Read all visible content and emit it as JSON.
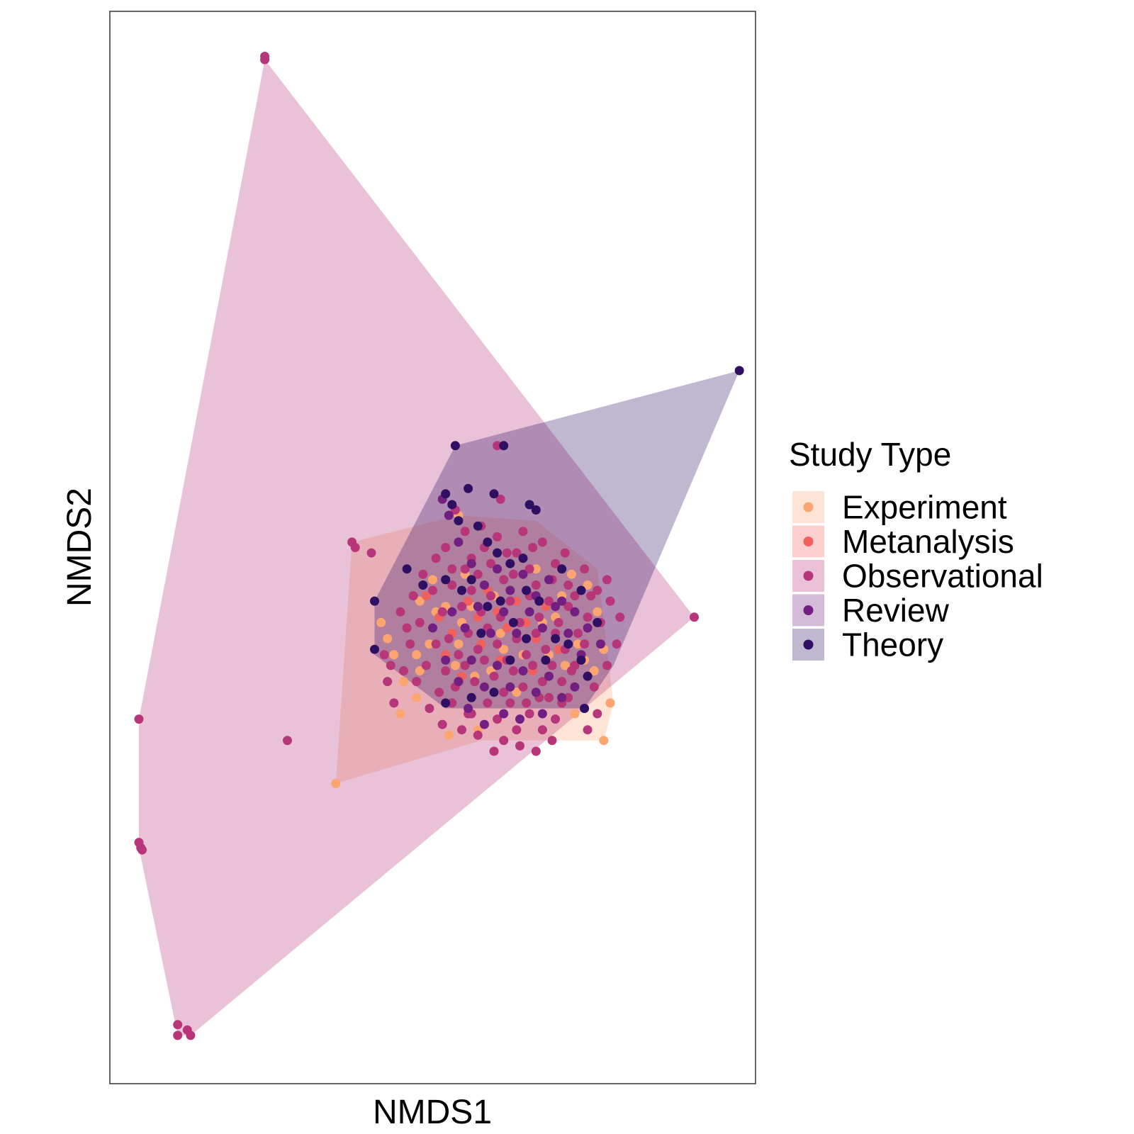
{
  "chart_data": {
    "type": "scatter",
    "title": "",
    "xlabel": "NMDS1",
    "ylabel": "NMDS2",
    "xlim": [
      0,
      100
    ],
    "ylim": [
      0,
      100
    ],
    "grid": false,
    "legend": {
      "title": "Study Type",
      "placement": "right"
    },
    "series": [
      {
        "name": "Experiment",
        "color": "#FCA570",
        "hull": [
          [
            35.0,
            28.0
          ],
          [
            37.5,
            50.5
          ],
          [
            54.0,
            53.0
          ],
          [
            66.0,
            52.5
          ],
          [
            75.5,
            48.0
          ],
          [
            78.0,
            35.5
          ],
          [
            76.5,
            32.0
          ],
          [
            57.5,
            32.0
          ]
        ],
        "points": [
          [
            37.5,
            50.5
          ],
          [
            35.0,
            28.0
          ],
          [
            76.5,
            32.0
          ],
          [
            77.5,
            35.5
          ],
          [
            54.0,
            53.0
          ],
          [
            42.0,
            43.0
          ],
          [
            43.0,
            41.5
          ],
          [
            44.0,
            40.0
          ],
          [
            45.5,
            37.5
          ],
          [
            47.5,
            40.0
          ],
          [
            48.0,
            38.5
          ],
          [
            49.5,
            41.0
          ],
          [
            50.0,
            47.0
          ],
          [
            52.0,
            44.5
          ],
          [
            54.0,
            41.0
          ],
          [
            54.5,
            43.0
          ],
          [
            56.0,
            44.5
          ],
          [
            58.0,
            37.0
          ],
          [
            59.0,
            38.5
          ],
          [
            60.5,
            42.0
          ],
          [
            63.0,
            36.5
          ],
          [
            64.0,
            40.0
          ],
          [
            66.0,
            48.0
          ],
          [
            67.0,
            43.0
          ],
          [
            68.0,
            40.0
          ],
          [
            70.0,
            45.5
          ],
          [
            71.5,
            47.5
          ],
          [
            72.5,
            41.0
          ],
          [
            73.5,
            39.5
          ],
          [
            75.0,
            38.5
          ],
          [
            76.5,
            40.5
          ],
          [
            72.0,
            34.5
          ],
          [
            45.0,
            34.5
          ],
          [
            52.5,
            32.5
          ],
          [
            57.0,
            33.0
          ],
          [
            50.5,
            44.0
          ],
          [
            48.0,
            45.0
          ],
          [
            47.5,
            36.0
          ],
          [
            53.5,
            39.0
          ],
          [
            55.0,
            47.5
          ],
          [
            59.5,
            45.5
          ],
          [
            69.0,
            43.5
          ],
          [
            70.5,
            39.0
          ],
          [
            74.0,
            46.5
          ],
          [
            75.5,
            44.0
          ],
          [
            56.5,
            38.0
          ],
          [
            61.0,
            40.5
          ]
        ]
      },
      {
        "name": "Metanalysis",
        "color": "#F0605D",
        "hull": [],
        "points": [
          [
            49.0,
            45.5
          ],
          [
            51.0,
            43.5
          ],
          [
            53.0,
            42.0
          ],
          [
            55.5,
            45.0
          ],
          [
            57.0,
            43.5
          ],
          [
            58.5,
            46.0
          ],
          [
            60.0,
            44.0
          ],
          [
            61.5,
            42.5
          ],
          [
            63.0,
            45.0
          ],
          [
            64.5,
            43.0
          ],
          [
            66.0,
            41.5
          ],
          [
            67.5,
            44.5
          ],
          [
            52.0,
            40.0
          ],
          [
            54.5,
            38.0
          ],
          [
            60.5,
            39.5
          ],
          [
            65.5,
            38.5
          ],
          [
            69.5,
            40.5
          ],
          [
            57.5,
            41.0
          ]
        ]
      },
      {
        "name": "Observational",
        "color": "#B63679",
        "hull": [
          [
            24.0,
            95.5
          ],
          [
            4.5,
            34.0
          ],
          [
            4.5,
            22.0
          ],
          [
            10.5,
            4.5
          ],
          [
            12.5,
            4.5
          ],
          [
            90.5,
            43.5
          ]
        ],
        "points": [
          [
            24.0,
            95.5
          ],
          [
            24.0,
            95.8
          ],
          [
            4.5,
            34.0
          ],
          [
            4.5,
            22.5
          ],
          [
            4.8,
            22.0
          ],
          [
            5.0,
            21.8
          ],
          [
            10.5,
            5.5
          ],
          [
            12.0,
            5.0
          ],
          [
            10.5,
            4.5
          ],
          [
            12.5,
            4.5
          ],
          [
            27.5,
            32.0
          ],
          [
            90.5,
            43.5
          ],
          [
            37.5,
            50.5
          ],
          [
            38.0,
            50.0
          ],
          [
            40.5,
            49.5
          ],
          [
            60.0,
            59.5
          ],
          [
            60.5,
            54.5
          ],
          [
            53.5,
            53.5
          ],
          [
            55.0,
            51.5
          ],
          [
            57.5,
            52.0
          ],
          [
            60.0,
            51.0
          ],
          [
            52.0,
            50.0
          ],
          [
            56.0,
            49.0
          ],
          [
            59.0,
            48.5
          ],
          [
            61.0,
            47.0
          ],
          [
            63.0,
            49.5
          ],
          [
            65.0,
            48.0
          ],
          [
            67.0,
            50.5
          ],
          [
            69.0,
            48.5
          ],
          [
            71.0,
            46.5
          ],
          [
            73.5,
            48.0
          ],
          [
            75.5,
            46.0
          ],
          [
            77.5,
            45.0
          ],
          [
            79.0,
            43.5
          ],
          [
            78.5,
            41.0
          ],
          [
            77.0,
            39.0
          ],
          [
            75.0,
            37.0
          ],
          [
            73.5,
            35.0
          ],
          [
            71.0,
            36.0
          ],
          [
            69.0,
            34.0
          ],
          [
            67.0,
            33.0
          ],
          [
            65.0,
            34.5
          ],
          [
            63.0,
            33.0
          ],
          [
            61.0,
            32.0
          ],
          [
            59.5,
            31.0
          ],
          [
            57.0,
            32.5
          ],
          [
            55.5,
            34.5
          ],
          [
            53.0,
            35.5
          ],
          [
            51.0,
            36.5
          ],
          [
            49.5,
            35.0
          ],
          [
            47.5,
            37.5
          ],
          [
            45.5,
            38.5
          ],
          [
            43.5,
            39.0
          ],
          [
            44.0,
            35.5
          ],
          [
            46.5,
            41.0
          ],
          [
            45.0,
            44.0
          ],
          [
            48.0,
            43.0
          ],
          [
            50.0,
            46.0
          ],
          [
            51.5,
            44.0
          ],
          [
            53.0,
            46.5
          ],
          [
            54.5,
            44.5
          ],
          [
            56.0,
            46.0
          ],
          [
            57.5,
            44.0
          ],
          [
            59.0,
            45.5
          ],
          [
            60.5,
            43.5
          ],
          [
            62.0,
            45.0
          ],
          [
            63.5,
            43.0
          ],
          [
            65.0,
            45.5
          ],
          [
            66.5,
            43.5
          ],
          [
            68.0,
            45.0
          ],
          [
            69.5,
            43.0
          ],
          [
            71.0,
            44.5
          ],
          [
            72.5,
            42.0
          ],
          [
            74.0,
            43.5
          ],
          [
            52.5,
            41.5
          ],
          [
            54.0,
            40.0
          ],
          [
            55.5,
            42.0
          ],
          [
            57.0,
            40.5
          ],
          [
            58.5,
            42.5
          ],
          [
            60.0,
            41.0
          ],
          [
            61.5,
            39.5
          ],
          [
            63.0,
            41.5
          ],
          [
            64.5,
            40.0
          ],
          [
            66.0,
            42.0
          ],
          [
            67.5,
            40.5
          ],
          [
            69.0,
            42.0
          ],
          [
            70.5,
            40.5
          ],
          [
            72.0,
            39.0
          ],
          [
            73.5,
            41.0
          ],
          [
            49.0,
            39.0
          ],
          [
            50.5,
            41.0
          ],
          [
            52.0,
            38.5
          ],
          [
            53.5,
            37.0
          ],
          [
            55.0,
            39.0
          ],
          [
            56.5,
            37.5
          ],
          [
            58.0,
            39.5
          ],
          [
            59.5,
            38.0
          ],
          [
            61.0,
            36.5
          ],
          [
            62.5,
            38.5
          ],
          [
            64.0,
            37.0
          ],
          [
            65.5,
            39.0
          ],
          [
            67.0,
            37.5
          ],
          [
            68.5,
            39.0
          ],
          [
            70.0,
            37.5
          ],
          [
            71.5,
            38.5
          ],
          [
            56.0,
            34.5
          ],
          [
            58.5,
            35.5
          ],
          [
            60.0,
            34.0
          ],
          [
            62.0,
            35.5
          ],
          [
            64.5,
            35.5
          ],
          [
            66.5,
            36.0
          ],
          [
            68.0,
            36.0
          ],
          [
            70.0,
            35.5
          ],
          [
            76.0,
            43.0
          ],
          [
            77.0,
            47.0
          ],
          [
            55.0,
            48.0
          ],
          [
            58.0,
            50.0
          ],
          [
            62.5,
            47.5
          ],
          [
            64.0,
            51.5
          ],
          [
            66.0,
            46.5
          ],
          [
            68.5,
            47.0
          ],
          [
            70.5,
            49.5
          ],
          [
            72.0,
            45.5
          ],
          [
            74.5,
            45.5
          ],
          [
            43.0,
            37.5
          ],
          [
            42.5,
            40.0
          ],
          [
            46.0,
            42.5
          ],
          [
            47.0,
            45.5
          ],
          [
            48.5,
            47.5
          ],
          [
            50.5,
            49.0
          ],
          [
            53.0,
            48.0
          ],
          [
            57.0,
            47.5
          ],
          [
            61.5,
            49.5
          ],
          [
            65.5,
            50.0
          ],
          [
            51.5,
            33.5
          ],
          [
            54.5,
            33.0
          ],
          [
            63.5,
            31.5
          ],
          [
            66.0,
            31.0
          ],
          [
            68.5,
            32.0
          ],
          [
            74.0,
            33.0
          ],
          [
            75.5,
            34.5
          ]
        ]
      },
      {
        "name": "Review",
        "color": "#721F81",
        "hull": [],
        "points": [
          [
            51.5,
            54.5
          ],
          [
            52.5,
            53.0
          ],
          [
            54.0,
            50.5
          ],
          [
            56.0,
            48.5
          ],
          [
            58.0,
            46.5
          ],
          [
            60.0,
            48.0
          ],
          [
            62.0,
            46.0
          ],
          [
            64.0,
            47.5
          ],
          [
            66.0,
            45.5
          ],
          [
            68.0,
            47.0
          ],
          [
            70.0,
            45.0
          ],
          [
            72.0,
            44.0
          ],
          [
            74.0,
            42.5
          ],
          [
            76.0,
            41.0
          ],
          [
            53.0,
            44.0
          ],
          [
            55.0,
            42.5
          ],
          [
            57.0,
            44.5
          ],
          [
            59.0,
            42.0
          ],
          [
            61.0,
            44.0
          ],
          [
            63.0,
            42.0
          ],
          [
            65.0,
            44.0
          ],
          [
            67.0,
            42.5
          ],
          [
            69.0,
            44.5
          ],
          [
            71.0,
            42.0
          ],
          [
            73.0,
            40.0
          ],
          [
            50.0,
            42.5
          ],
          [
            52.0,
            39.5
          ],
          [
            54.0,
            37.5
          ],
          [
            56.0,
            39.5
          ],
          [
            58.0,
            37.0
          ],
          [
            60.0,
            39.0
          ],
          [
            62.0,
            37.0
          ],
          [
            64.0,
            38.5
          ],
          [
            66.0,
            36.5
          ],
          [
            68.0,
            38.0
          ],
          [
            70.0,
            36.0
          ],
          [
            72.0,
            37.0
          ],
          [
            55.5,
            35.0
          ],
          [
            58.0,
            33.5
          ],
          [
            61.0,
            34.5
          ],
          [
            63.5,
            34.0
          ],
          [
            67.0,
            34.5
          ]
        ]
      },
      {
        "name": "Theory",
        "color": "#2E0F62",
        "hull": [
          [
            53.5,
            59.5
          ],
          [
            97.5,
            66.5
          ],
          [
            78.0,
            39.0
          ],
          [
            73.5,
            35.0
          ],
          [
            52.0,
            35.0
          ],
          [
            41.0,
            40.0
          ],
          [
            41.0,
            45.0
          ]
        ],
        "points": [
          [
            97.5,
            66.5
          ],
          [
            53.5,
            59.5
          ],
          [
            61.0,
            59.5
          ],
          [
            55.5,
            55.5
          ],
          [
            52.0,
            55.0
          ],
          [
            53.0,
            54.0
          ],
          [
            59.5,
            55.0
          ],
          [
            65.0,
            54.0
          ],
          [
            66.0,
            53.5
          ],
          [
            54.0,
            52.5
          ],
          [
            57.0,
            52.0
          ],
          [
            58.5,
            50.5
          ],
          [
            60.0,
            49.5
          ],
          [
            62.0,
            48.5
          ],
          [
            64.0,
            49.0
          ],
          [
            70.0,
            48.0
          ],
          [
            73.0,
            46.0
          ],
          [
            75.5,
            43.0
          ],
          [
            41.0,
            45.0
          ],
          [
            41.0,
            40.5
          ],
          [
            46.0,
            48.0
          ],
          [
            48.5,
            46.5
          ],
          [
            52.0,
            47.0
          ],
          [
            56.0,
            47.0
          ],
          [
            58.5,
            44.5
          ],
          [
            62.5,
            43.0
          ],
          [
            64.5,
            46.0
          ],
          [
            66.5,
            45.0
          ],
          [
            69.0,
            41.5
          ],
          [
            73.0,
            39.5
          ],
          [
            74.0,
            38.0
          ],
          [
            73.5,
            35.0
          ],
          [
            52.0,
            35.5
          ],
          [
            56.0,
            36.0
          ],
          [
            59.5,
            36.5
          ],
          [
            62.0,
            39.5
          ],
          [
            64.5,
            41.5
          ],
          [
            67.5,
            39.5
          ],
          [
            71.0,
            41.0
          ],
          [
            57.5,
            42.0
          ],
          [
            54.5,
            46.0
          ],
          [
            60.5,
            45.0
          ]
        ]
      }
    ]
  }
}
